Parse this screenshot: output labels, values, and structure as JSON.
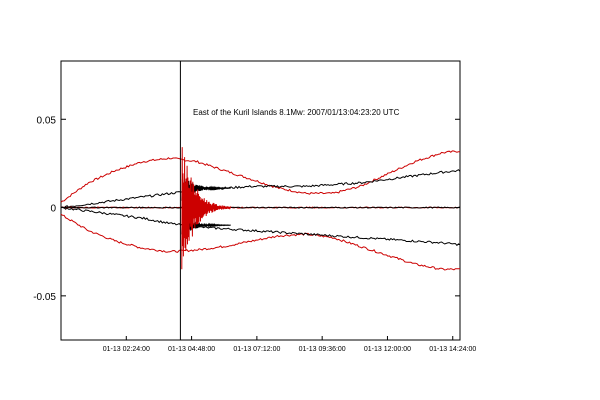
{
  "chart_data": {
    "type": "line",
    "title": "",
    "xlabel": "",
    "ylabel": "",
    "annotation": "East of the Kuril Islands 8.1Mw: 2007/01/13:04:23:20 UTC",
    "event_time": "01-13 04:23:20",
    "x_range": [
      "01-13 00:00:00",
      "01-13 14:40:00"
    ],
    "ylim": [
      -0.075,
      0.083
    ],
    "yticks": [
      -0.05,
      0,
      0.05
    ],
    "ytick_labels": [
      "-0.05",
      "0",
      "0.05"
    ],
    "xtick_labels": [
      "01-13 02:24:00",
      "01-13 04:48:00",
      "01-13 07:12:00",
      "01-13 09:36:00",
      "01-13 12:00:00",
      "01-13 14:24:00"
    ],
    "grid": false,
    "series": [
      {
        "color": "#cc0000",
        "x": [
          "01-13 00:00",
          "01-13 01:00",
          "01-13 02:00",
          "01-13 03:00",
          "01-13 04:00",
          "01-13 05:00",
          "01-13 06:00",
          "01-13 07:00",
          "01-13 08:00",
          "01-13 09:00",
          "01-13 10:00",
          "01-13 11:00",
          "01-13 12:00",
          "01-13 13:00",
          "01-13 14:00",
          "01-13 14:40"
        ],
        "values": [
          0.003,
          0.014,
          0.021,
          0.026,
          0.028,
          0.026,
          0.021,
          0.016,
          0.011,
          0.008,
          0.008,
          0.012,
          0.019,
          0.026,
          0.031,
          0.032
        ]
      },
      {
        "color": "#cc0000",
        "x": [
          "01-13 00:00",
          "01-13 01:00",
          "01-13 02:00",
          "01-13 03:00",
          "01-13 04:00",
          "01-13 05:00",
          "01-13 06:00",
          "01-13 07:00",
          "01-13 08:00",
          "01-13 09:00",
          "01-13 10:00",
          "01-13 11:00",
          "01-13 12:00",
          "01-13 13:00",
          "01-13 14:00",
          "01-13 14:40"
        ],
        "values": [
          -0.004,
          -0.013,
          -0.019,
          -0.023,
          -0.025,
          -0.024,
          -0.022,
          -0.019,
          -0.016,
          -0.015,
          -0.017,
          -0.022,
          -0.027,
          -0.032,
          -0.035,
          -0.035
        ]
      },
      {
        "color": "#000000",
        "x": [
          "01-13 00:00",
          "01-13 01:00",
          "01-13 02:00",
          "01-13 03:00",
          "01-13 04:00",
          "01-13 05:00",
          "01-13 06:00",
          "01-13 07:00",
          "01-13 08:00",
          "01-13 09:00",
          "01-13 10:00",
          "01-13 11:00",
          "01-13 12:00",
          "01-13 13:00",
          "01-13 14:00",
          "01-13 14:40"
        ],
        "values": [
          0.0,
          0.002,
          0.004,
          0.006,
          0.008,
          0.01,
          0.011,
          0.012,
          0.012,
          0.012,
          0.013,
          0.014,
          0.016,
          0.018,
          0.02,
          0.021
        ]
      },
      {
        "color": "#000000",
        "x": [
          "01-13 00:00",
          "01-13 01:00",
          "01-13 02:00",
          "01-13 03:00",
          "01-13 04:00",
          "01-13 05:00",
          "01-13 06:00",
          "01-13 07:00",
          "01-13 08:00",
          "01-13 09:00",
          "01-13 10:00",
          "01-13 11:00",
          "01-13 12:00",
          "01-13 13:00",
          "01-13 14:00",
          "01-13 14:40"
        ],
        "values": [
          0.0,
          -0.002,
          -0.004,
          -0.006,
          -0.009,
          -0.011,
          -0.012,
          -0.013,
          -0.014,
          -0.015,
          -0.016,
          -0.017,
          -0.018,
          -0.019,
          -0.02,
          -0.021
        ]
      },
      {
        "color": "#cc0000",
        "x": [
          "01-13 00:00",
          "01-13 14:40"
        ],
        "values": [
          0.0,
          0.0
        ]
      },
      {
        "color": "#000000",
        "x": [
          "01-13 00:00",
          "01-13 14:40"
        ],
        "values": [
          0.0,
          0.0
        ]
      }
    ]
  }
}
